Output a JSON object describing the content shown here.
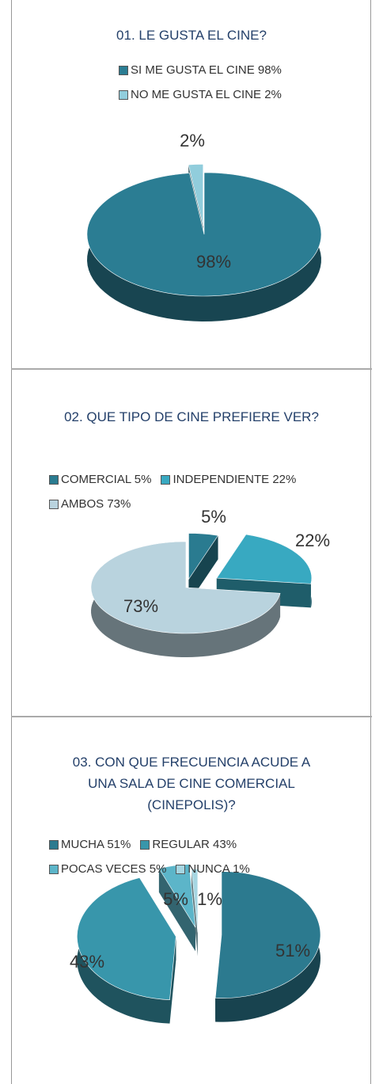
{
  "chart_data": [
    {
      "type": "pie",
      "title": "01. LE GUSTA EL CINE?",
      "categories": [
        "SI ME GUSTA EL CINE 98%",
        "NO ME GUSTA EL CINE 2%"
      ],
      "values": [
        98,
        2
      ],
      "value_labels": [
        "98%",
        "2%"
      ],
      "colors": [
        "#2b7d93",
        "#91cddc"
      ]
    },
    {
      "type": "pie",
      "title": "02. QUE TIPO DE CINE PREFIERE VER?",
      "categories": [
        "COMERCIAL 5%",
        "INDEPENDIENTE 22%",
        "AMBOS 73%"
      ],
      "values": [
        5,
        22,
        73
      ],
      "value_labels": [
        "5%",
        "22%",
        "73%"
      ],
      "colors": [
        "#2a7b90",
        "#38a9c1",
        "#b9d3de"
      ]
    },
    {
      "type": "pie",
      "title": "03. CON QUE FRECUENCIA ACUDE A UNA SALA DE CINE COMERCIAL (CINEPOLIS)?",
      "categories": [
        "MUCHA 51%",
        "REGULAR 43%",
        "POCAS VECES 5%",
        "NUNCA 1%"
      ],
      "values": [
        51,
        43,
        5,
        1
      ],
      "value_labels": [
        "51%",
        "43%",
        "5%",
        "1%"
      ],
      "colors": [
        "#2c7a8f",
        "#3896ab",
        "#5cb5c9",
        "#a6d6e2"
      ]
    }
  ]
}
